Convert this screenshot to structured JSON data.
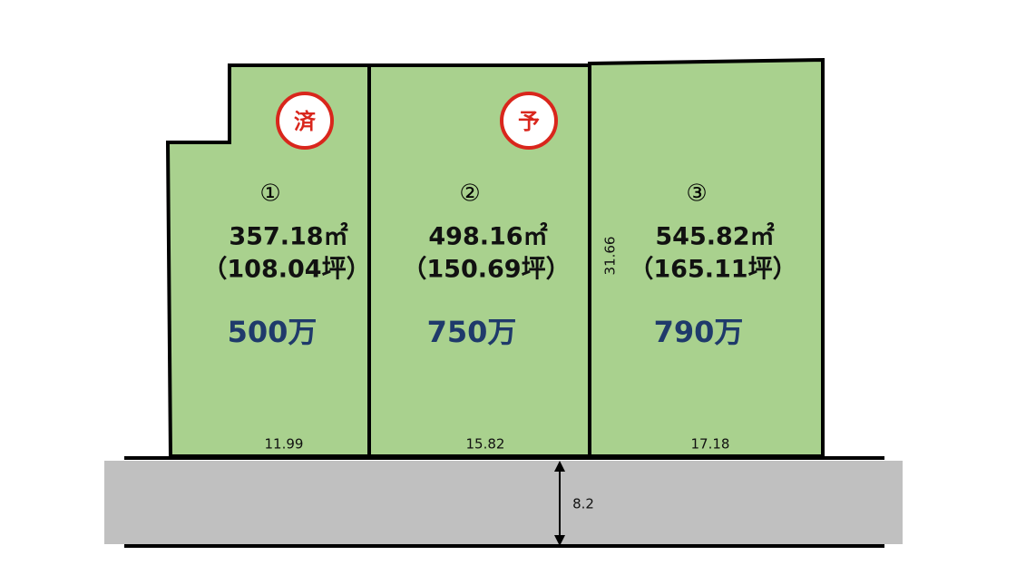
{
  "lots": [
    {
      "status": "済",
      "number": "①",
      "area": "357.18㎡",
      "tsubo": "（108.04坪）",
      "price": "500万",
      "frontage": "11.99"
    },
    {
      "status": "予",
      "number": "②",
      "area": "498.16㎡",
      "tsubo": "（150.69坪）",
      "price": "750万",
      "frontage": "15.82"
    },
    {
      "number": "③",
      "area": "545.82㎡",
      "tsubo": "（165.11坪）",
      "price": "790万",
      "frontage": "17.18"
    }
  ],
  "depth": "31.66",
  "road_width": "8.2"
}
